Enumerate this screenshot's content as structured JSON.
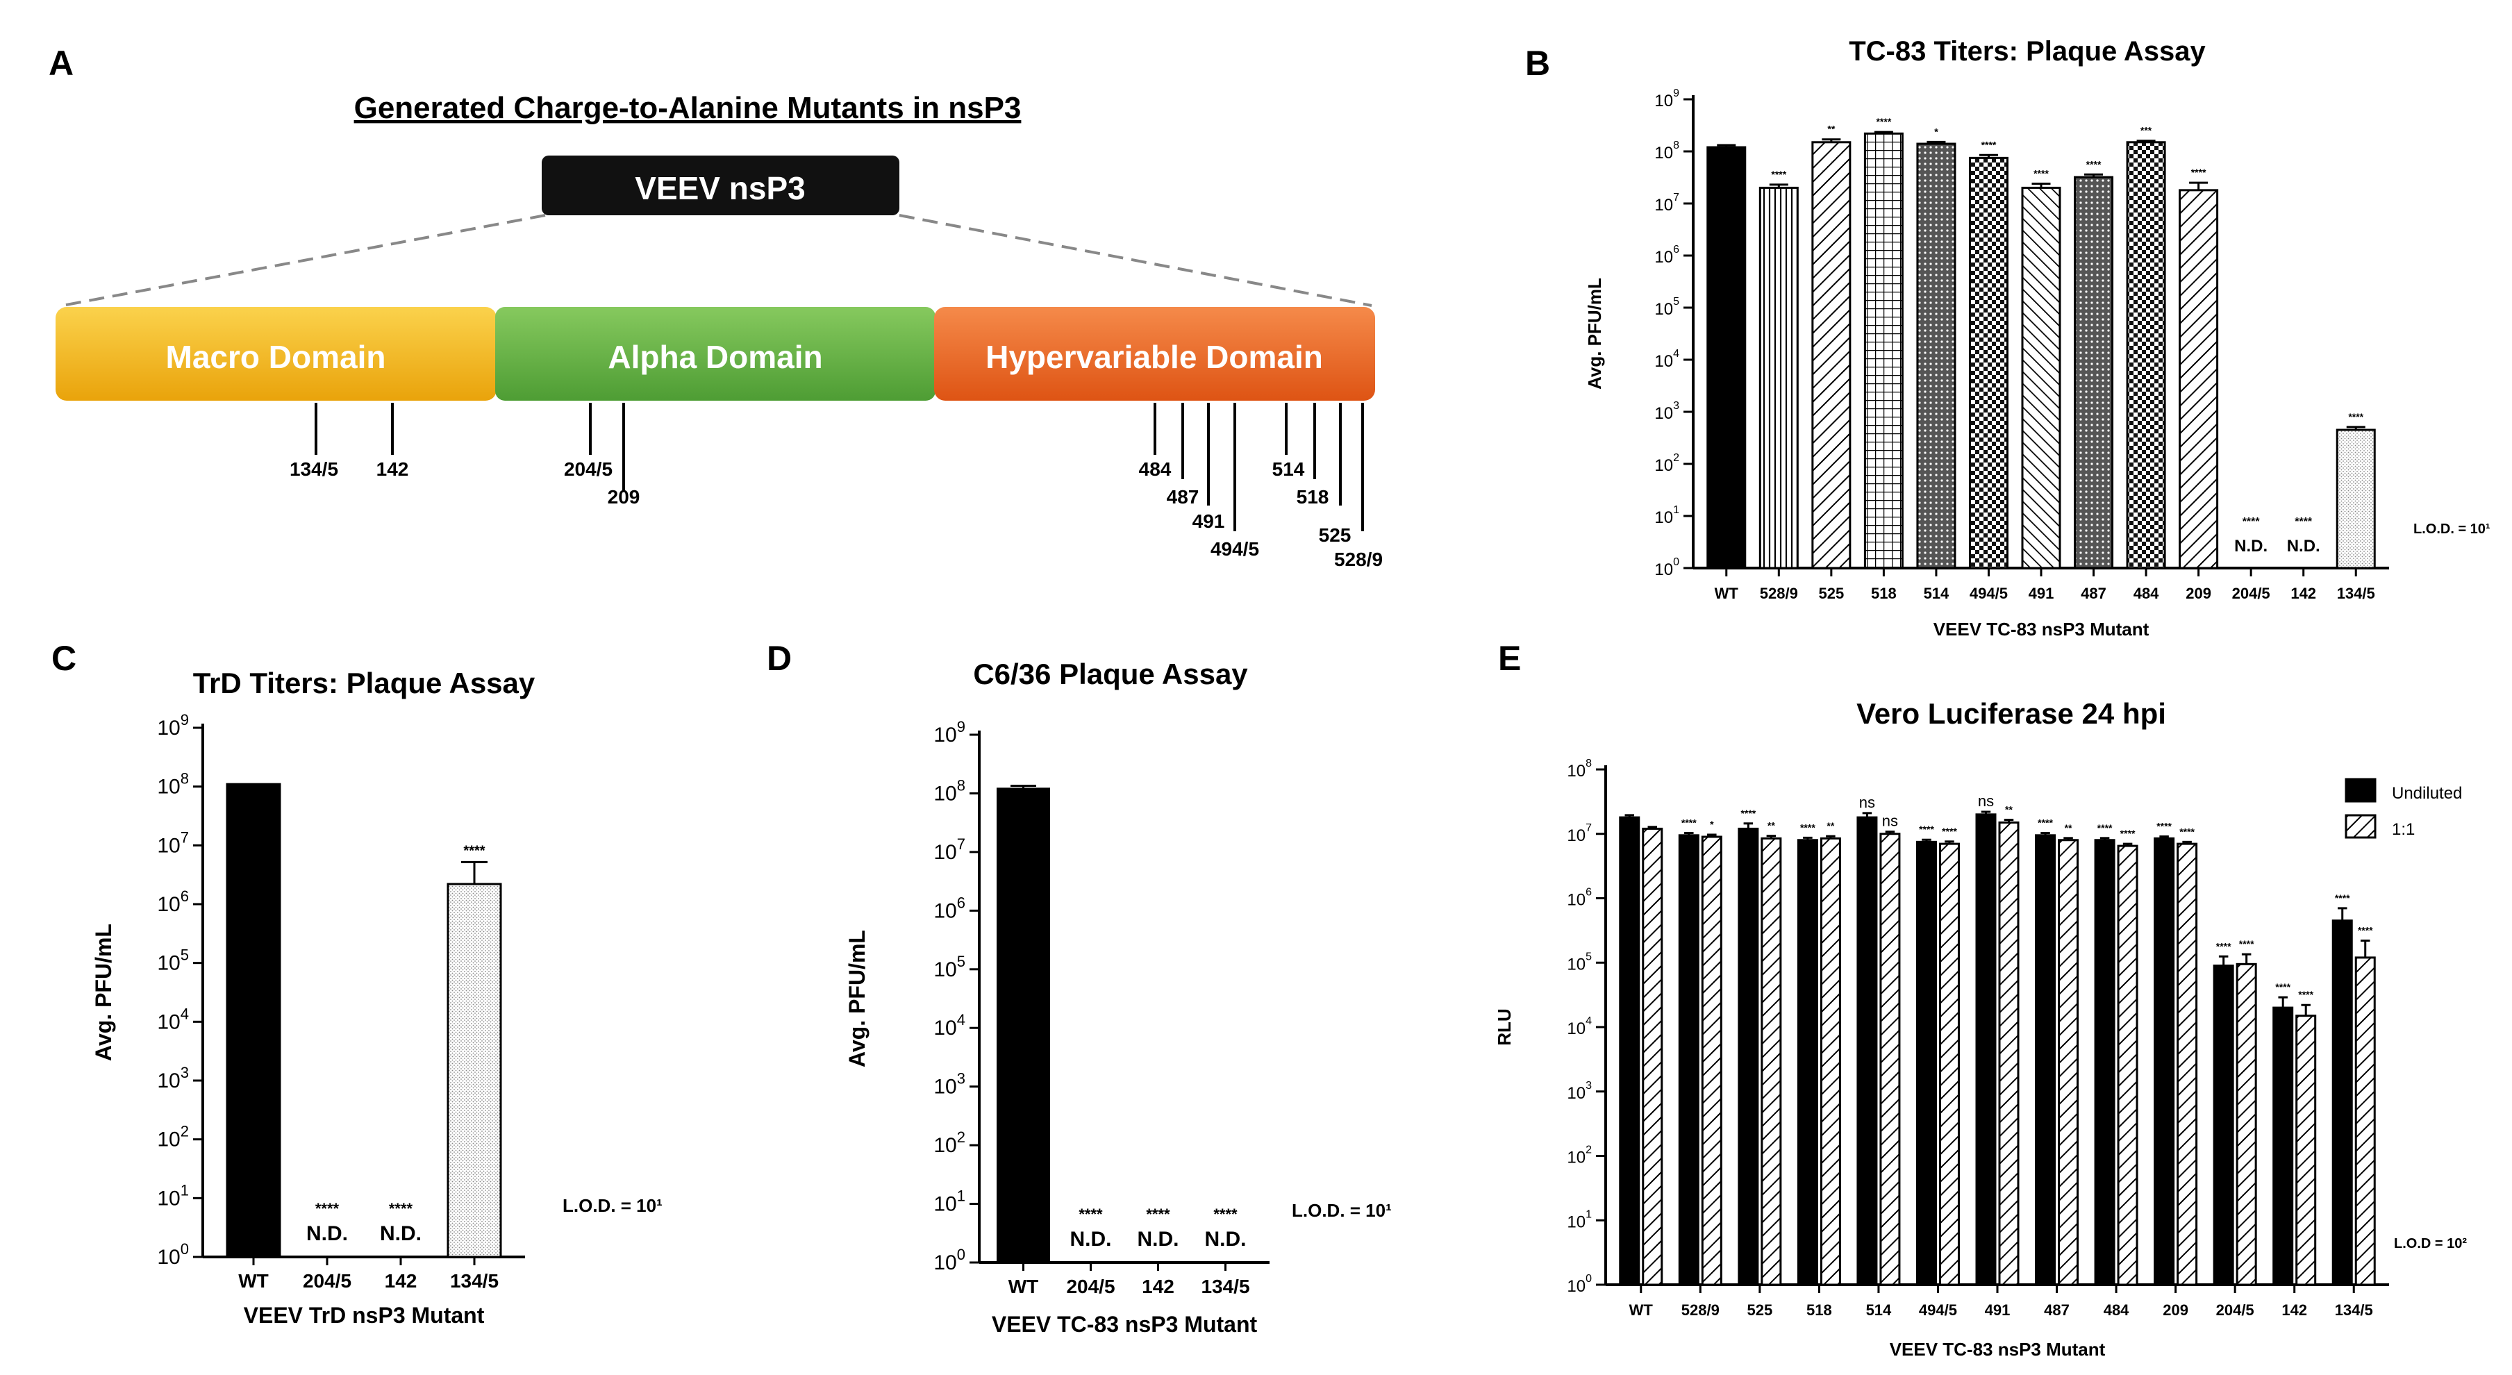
{
  "figure": {
    "panel_labels": [
      "A",
      "B",
      "C",
      "D",
      "E"
    ]
  },
  "panel_a": {
    "title": "Generated Charge-to-Alanine Mutants in nsP3",
    "protein_label": "VEEV nsP3",
    "domains": [
      {
        "name": "Macro Domain",
        "color": "#f5b80f"
      },
      {
        "name": "Alpha Domain",
        "color": "#6ab545"
      },
      {
        "name": "Hypervariable Domain",
        "color": "#ef6a24"
      }
    ],
    "sites": [
      "134/5",
      "142",
      "204/5",
      "209",
      "484",
      "487",
      "491",
      "494/5",
      "514",
      "518",
      "525",
      "528/9"
    ]
  },
  "chart_data": [
    {
      "id": "B",
      "type": "bar",
      "title": "TC-83 Titers: Plaque Assay",
      "xlabel": "VEEV TC-83 nsP3 Mutant",
      "ylabel": "Avg. PFU/mL",
      "yscale": "log10",
      "ylim": [
        1,
        1000000000
      ],
      "categories": [
        "WT",
        "528/9",
        "525",
        "518",
        "514",
        "494/5",
        "491",
        "487",
        "484",
        "209",
        "204/5",
        "142",
        "134/5"
      ],
      "values": [
        120000000,
        20000000,
        150000000,
        220000000,
        140000000,
        75000000,
        20000000,
        32000000,
        150000000,
        18000000,
        null,
        null,
        450
      ],
      "errors": [
        12000000,
        3000000,
        20000000,
        15000000,
        12000000,
        10000000,
        4000000,
        4000000,
        10000000,
        7000000,
        null,
        null,
        60
      ],
      "patterns": [
        "solid",
        "vline",
        "diag",
        "grid",
        "dots",
        "checker",
        "diag2",
        "dots",
        "checker",
        "diag",
        null,
        null,
        "stipple"
      ],
      "significance": [
        "",
        "****",
        "**",
        "****",
        "*",
        "****",
        "****",
        "****",
        "***",
        "****",
        "****",
        "****",
        "****"
      ],
      "not_detected": [
        "",
        "",
        "",
        "",
        "",
        "",
        "",
        "",
        "",
        "",
        "N.D.",
        "N.D.",
        ""
      ],
      "lod_label": "L.O.D. = 10¹"
    },
    {
      "id": "C",
      "type": "bar",
      "title": "TrD Titers: Plaque Assay",
      "xlabel": "VEEV TrD nsP3 Mutant",
      "ylabel": "Avg. PFU/mL",
      "yscale": "log10",
      "ylim": [
        1,
        1000000000
      ],
      "categories": [
        "WT",
        "204/5",
        "142",
        "134/5"
      ],
      "values": [
        110000000,
        null,
        null,
        2200000
      ],
      "errors": [
        0,
        null,
        null,
        3000000
      ],
      "patterns": [
        "solid",
        null,
        null,
        "stipple"
      ],
      "significance": [
        "",
        "****",
        "****",
        "****"
      ],
      "not_detected": [
        "",
        "N.D.",
        "N.D.",
        ""
      ],
      "lod_label": "L.O.D. = 10¹"
    },
    {
      "id": "D",
      "type": "bar",
      "title": "C6/36 Plaque Assay",
      "xlabel": "VEEV TC-83 nsP3 Mutant",
      "ylabel": "Avg. PFU/mL",
      "yscale": "log10",
      "ylim": [
        1,
        1000000000
      ],
      "categories": [
        "WT",
        "204/5",
        "142",
        "134/5"
      ],
      "values": [
        120000000,
        null,
        null,
        null
      ],
      "errors": [
        15000000,
        null,
        null,
        null
      ],
      "patterns": [
        "solid",
        null,
        null,
        null
      ],
      "significance": [
        "",
        "****",
        "****",
        "****"
      ],
      "not_detected": [
        "",
        "N.D.",
        "N.D.",
        "N.D."
      ],
      "lod_label": "L.O.D. = 10¹"
    },
    {
      "id": "E",
      "type": "bar",
      "title": "Vero Luciferase 24 hpi",
      "xlabel": "VEEV TC-83 nsP3 Mutant",
      "ylabel": "RLU",
      "yscale": "log10",
      "ylim": [
        1,
        100000000
      ],
      "categories": [
        "WT",
        "528/9",
        "525",
        "518",
        "514",
        "494/5",
        "491",
        "487",
        "484",
        "209",
        "204/5",
        "142",
        "134/5"
      ],
      "series": [
        {
          "name": "Undiluted",
          "pattern": "solid",
          "values": [
            18000000,
            9500000,
            12000000,
            8000000,
            18000000,
            7500000,
            20000000,
            9500000,
            8000000,
            8500000,
            90000,
            20000,
            450000
          ],
          "errors": [
            1500000,
            800000,
            2500000,
            700000,
            3000000,
            600000,
            2000000,
            800000,
            600000,
            600000,
            35000,
            9000,
            250000
          ],
          "significance": [
            "",
            "****",
            "****",
            "****",
            "ns",
            "****",
            "ns",
            "****",
            "****",
            "****",
            "****",
            "****",
            "****"
          ]
        },
        {
          "name": "1:1",
          "pattern": "diag",
          "values": [
            12000000,
            9000000,
            8500000,
            8500000,
            10000000,
            7000000,
            15000000,
            8000000,
            6500000,
            7000000,
            95000,
            15000,
            120000
          ],
          "errors": [
            800000,
            700000,
            800000,
            700000,
            800000,
            600000,
            1500000,
            600000,
            500000,
            500000,
            40000,
            7000,
            100000
          ],
          "significance": [
            "",
            "*",
            "**",
            "**",
            "ns",
            "****",
            "**",
            "**",
            "****",
            "****",
            "****",
            "****",
            "****"
          ]
        }
      ],
      "legend_position": "top-right",
      "lod_label": "L.O.D = 10²"
    }
  ]
}
